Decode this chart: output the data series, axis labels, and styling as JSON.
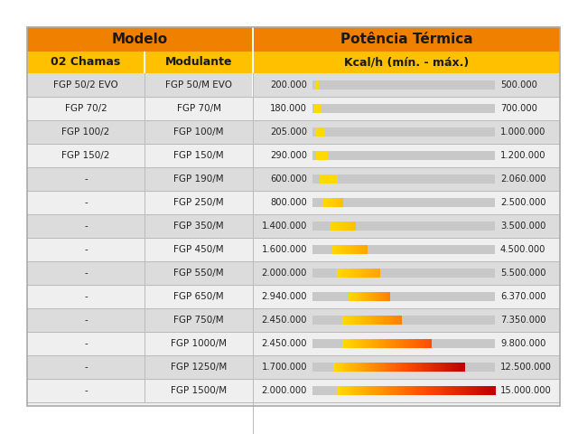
{
  "title_modelo": "Modelo",
  "title_potencia": "Potência Térmica",
  "header_chamas": "02 Chamas",
  "header_modulante": "Modulante",
  "header_kcal": "Kcal/h (mín. - máx.)",
  "rows": [
    {
      "chamas": "FGP 50/2 EVO",
      "modulante": "FGP 50/M EVO",
      "min": 200000,
      "max": 500000,
      "min_str": "200.000",
      "max_str": "500.000"
    },
    {
      "chamas": "FGP 70/2",
      "modulante": "FGP 70/M",
      "min": 180000,
      "max": 700000,
      "min_str": "180.000",
      "max_str": "700.000"
    },
    {
      "chamas": "FGP 100/2",
      "modulante": "FGP 100/M",
      "min": 205000,
      "max": 1000000,
      "min_str": "205.000",
      "max_str": "1.000.000"
    },
    {
      "chamas": "FGP 150/2",
      "modulante": "FGP 150/M",
      "min": 290000,
      "max": 1200000,
      "min_str": "290.000",
      "max_str": "1.200.000"
    },
    {
      "chamas": "-",
      "modulante": "FGP 190/M",
      "min": 600000,
      "max": 2060000,
      "min_str": "600.000",
      "max_str": "2.060.000"
    },
    {
      "chamas": "-",
      "modulante": "FGP 250/M",
      "min": 800000,
      "max": 2500000,
      "min_str": "800.000",
      "max_str": "2.500.000"
    },
    {
      "chamas": "-",
      "modulante": "FGP 350/M",
      "min": 1400000,
      "max": 3500000,
      "min_str": "1.400.000",
      "max_str": "3.500.000"
    },
    {
      "chamas": "-",
      "modulante": "FGP 450/M",
      "min": 1600000,
      "max": 4500000,
      "min_str": "1.600.000",
      "max_str": "4.500.000"
    },
    {
      "chamas": "-",
      "modulante": "FGP 550/M",
      "min": 2000000,
      "max": 5500000,
      "min_str": "2.000.000",
      "max_str": "5.500.000"
    },
    {
      "chamas": "-",
      "modulante": "FGP 650/M",
      "min": 2940000,
      "max": 6370000,
      "min_str": "2.940.000",
      "max_str": "6.370.000"
    },
    {
      "chamas": "-",
      "modulante": "FGP 750/M",
      "min": 2450000,
      "max": 7350000,
      "min_str": "2.450.000",
      "max_str": "7.350.000"
    },
    {
      "chamas": "-",
      "modulante": "FGP 1000/M",
      "min": 2450000,
      "max": 9800000,
      "min_str": "2.450.000",
      "max_str": "9.800.000"
    },
    {
      "chamas": "-",
      "modulante": "FGP 1250/M",
      "min": 1700000,
      "max": 12500000,
      "min_str": "1.700.000",
      "max_str": "12.500.000"
    },
    {
      "chamas": "-",
      "modulante": "FGP 1500/M",
      "min": 2000000,
      "max": 15000000,
      "min_str": "2.000.000",
      "max_str": "15.000.000"
    }
  ],
  "color_orange_title": "#F08000",
  "color_yellow_header": "#FFC000",
  "color_row_odd": "#DCDCDC",
  "color_row_even": "#EFEFEF",
  "color_bar_bg": "#C8C8C8",
  "color_text_dark": "#222222",
  "bar_max_value": 15000000,
  "outer_bg": "#FFFFFF",
  "fig_w": 6.4,
  "fig_h": 4.8,
  "dpi": 100
}
